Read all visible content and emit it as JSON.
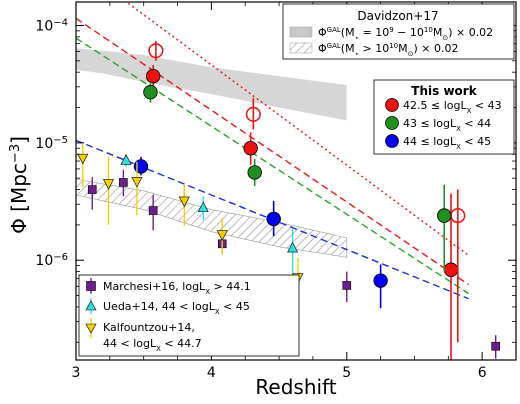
{
  "chart_data": {
    "type": "scatter",
    "xlabel": "Redshift",
    "ylabel": "Φ [Mpc^-3]",
    "xlim": [
      3.0,
      6.25
    ],
    "ylim_log10": [
      -6.85,
      -3.8
    ],
    "yscale": "log",
    "x_ticks": [
      3,
      4,
      5,
      6
    ],
    "y_ticks": [
      {
        "exp": -6,
        "label_base": "10",
        "label_exp": "−6"
      },
      {
        "exp": -5,
        "label_base": "10",
        "label_exp": "−5"
      },
      {
        "exp": -4,
        "label_base": "10",
        "label_exp": "−4"
      }
    ],
    "bands": [
      {
        "name": "Φ^GAL(M* = 10^9 − 10^10 M⊙) × 0.02",
        "color": "#c8c8c8",
        "hatch": false,
        "upper": [
          [
            3.0,
            6.4e-05
          ],
          [
            3.2,
            6.1e-05
          ],
          [
            3.5,
            5.6e-05
          ],
          [
            4.0,
            4.4e-05
          ],
          [
            4.5,
            3.7e-05
          ],
          [
            5.0,
            3.1e-05
          ]
        ],
        "lower": [
          [
            3.0,
            4.2e-05
          ],
          [
            3.2,
            3.9e-05
          ],
          [
            3.5,
            3.3e-05
          ],
          [
            4.0,
            2.6e-05
          ],
          [
            4.5,
            2e-05
          ],
          [
            5.0,
            1.55e-05
          ]
        ]
      },
      {
        "name": "Φ^GAL(M* > 10^10 M⊙) × 0.02",
        "color": "#8c8c8c",
        "hatch": true,
        "upper": [
          [
            3.0,
            4.9e-06
          ],
          [
            3.5,
            3.9e-06
          ],
          [
            4.0,
            2.7e-06
          ],
          [
            4.5,
            2.1e-06
          ],
          [
            5.0,
            1.55e-06
          ]
        ],
        "lower": [
          [
            3.0,
            3.6e-06
          ],
          [
            3.5,
            2.7e-06
          ],
          [
            4.0,
            1.75e-06
          ],
          [
            4.5,
            1.3e-06
          ],
          [
            5.0,
            1.06e-06
          ]
        ]
      }
    ],
    "fit_lines": [
      {
        "color": "#e41a1c",
        "dash": "2,3",
        "points": [
          [
            3.0,
            0.00033
          ],
          [
            5.9,
            1.1e-06
          ]
        ]
      },
      {
        "color": "#e41a1c",
        "dash": "7,4",
        "points": [
          [
            3.0,
            0.000115
          ],
          [
            5.9,
            6.2e-07
          ]
        ]
      },
      {
        "color": "#2ca02c",
        "dash": "7,4",
        "points": [
          [
            3.0,
            7.8e-05
          ],
          [
            5.9,
            5.2e-07
          ]
        ]
      },
      {
        "color": "#1f2fd6",
        "dash": "7,4",
        "points": [
          [
            3.0,
            1.05e-05
          ],
          [
            5.9,
            4.7e-07
          ]
        ]
      }
    ],
    "series": [
      {
        "name": "42.5 ≤ logL_X < 43",
        "color": "#ee1111",
        "marker": "circle",
        "filled": true,
        "points": [
          {
            "x": 3.57,
            "y": 3.7e-05,
            "lo": 3e-05,
            "hi": 4.6e-05
          },
          {
            "x": 4.29,
            "y": 9e-06,
            "lo": 6.5e-06,
            "hi": 1.23e-05
          },
          {
            "x": 5.77,
            "y": 8.3e-07,
            "lo": 1.2e-07,
            "hi": 3.7e-06
          }
        ]
      },
      {
        "name": "42.5 ≤ logL_X < 43 (open)",
        "color": "#ee1111",
        "marker": "circle",
        "filled": false,
        "points": [
          {
            "x": 3.59,
            "y": 6.1e-05,
            "lo": 5e-05,
            "hi": 7.4e-05
          },
          {
            "x": 4.31,
            "y": 1.75e-05,
            "lo": 1.3e-05,
            "hi": 2.4e-05
          },
          {
            "x": 5.82,
            "y": 2.4e-06,
            "lo": 2e-07,
            "hi": 4e-06
          }
        ]
      },
      {
        "name": "43 ≤ logL_X < 44",
        "color": "#1f8f1f",
        "marker": "circle",
        "filled": true,
        "points": [
          {
            "x": 3.55,
            "y": 2.7e-05,
            "lo": 2.2e-05,
            "hi": 3.3e-05
          },
          {
            "x": 4.32,
            "y": 5.6e-06,
            "lo": 4.3e-06,
            "hi": 7.3e-06
          },
          {
            "x": 5.72,
            "y": 2.4e-06,
            "lo": 8e-07,
            "hi": 4.4e-06
          }
        ]
      },
      {
        "name": "44 ≤ logL_X < 45",
        "color": "#0000ee",
        "marker": "circle",
        "filled": true,
        "points": [
          {
            "x": 3.48,
            "y": 6.3e-06,
            "lo": 5.3e-06,
            "hi": 7.6e-06
          },
          {
            "x": 4.46,
            "y": 2.25e-06,
            "lo": 1.6e-06,
            "hi": 3.2e-06
          },
          {
            "x": 5.25,
            "y": 6.7e-07,
            "lo": 3.9e-07,
            "hi": 9.2e-07
          }
        ]
      },
      {
        "name": "Marchesi+16, logL_X > 44.1",
        "color": "#6a1f8c",
        "marker": "square",
        "filled": true,
        "points": [
          {
            "x": 3.12,
            "y": 4e-06,
            "lo": 2.7e-06,
            "hi": 5.1e-06
          },
          {
            "x": 3.35,
            "y": 4.6e-06,
            "lo": 3.5e-06,
            "hi": 5.9e-06
          },
          {
            "x": 3.57,
            "y": 2.65e-06,
            "lo": 1.8e-06,
            "hi": 3.6e-06
          },
          {
            "x": 4.08,
            "y": 1.38e-06,
            "lo": 1.12e-06,
            "hi": 1.75e-06
          },
          {
            "x": 5.0,
            "y": 6.1e-07,
            "lo": 4.4e-07,
            "hi": 8e-07
          },
          {
            "x": 6.1,
            "y": 1.85e-07,
            "lo": 1.45e-07,
            "hi": 2.3e-07
          }
        ]
      },
      {
        "name": "Ueda+14, 44 < logL_X < 45",
        "color": "#33dddd",
        "marker": "triangle-up",
        "filled": true,
        "points": [
          {
            "x": 3.37,
            "y": 7.1e-06,
            "lo": 6.2e-06,
            "hi": 8e-06
          },
          {
            "x": 3.94,
            "y": 2.8e-06,
            "lo": 2.2e-06,
            "hi": 3.5e-06
          },
          {
            "x": 4.6,
            "y": 1.27e-06,
            "lo": 6e-07,
            "hi": 1.85e-06
          }
        ]
      },
      {
        "name": "Kalfountzou+14, 44 < logL_X < 44.7",
        "color": "#f5d000",
        "marker": "triangle-down",
        "filled": true,
        "points": [
          {
            "x": 3.05,
            "y": 7.4e-06,
            "lo": 4.2e-06,
            "hi": 9.8e-06
          },
          {
            "x": 3.24,
            "y": 4.5e-06,
            "lo": 2e-06,
            "hi": 7.5e-06
          },
          {
            "x": 3.45,
            "y": 4.7e-06,
            "lo": 2.4e-06,
            "hi": 6.9e-06
          },
          {
            "x": 3.8,
            "y": 3.2e-06,
            "lo": 1.95e-06,
            "hi": 4.4e-06
          },
          {
            "x": 4.08,
            "y": 1.65e-06,
            "lo": 1.12e-06,
            "hi": 2.3e-06
          },
          {
            "x": 4.64,
            "y": 7.1e-07,
            "lo": 2.3e-07,
            "hi": 1.05e-06
          }
        ]
      }
    ],
    "legend_davidzon": {
      "title": "Davidzon+17",
      "entries": [
        {
          "text": "Φ^GAL(M* = 10^9 − 10^10 M⊙) × 0.02"
        },
        {
          "text": "Φ^GAL(M* > 10^10 M⊙) × 0.02"
        }
      ],
      "placement": "top-right"
    },
    "legend_thiswork": {
      "title": "This work",
      "entries": [
        {
          "text": "42.5 ≤ logL_X < 43",
          "color": "#ee1111"
        },
        {
          "text": "43 ≤ logL_X < 44",
          "color": "#1f8f1f"
        },
        {
          "text": "44 ≤ logL_X < 45",
          "color": "#0000ee"
        }
      ],
      "placement": "upper-right"
    },
    "legend_literature": {
      "entries": [
        {
          "text": "Marchesi+16, logL_X > 44.1"
        },
        {
          "text": "Ueda+14, 44 < logL_X < 45"
        },
        {
          "text": "Kalfountzou+14,"
        },
        {
          "text": "44 < logL_X < 44.7"
        }
      ],
      "placement": "bottom-left"
    }
  }
}
